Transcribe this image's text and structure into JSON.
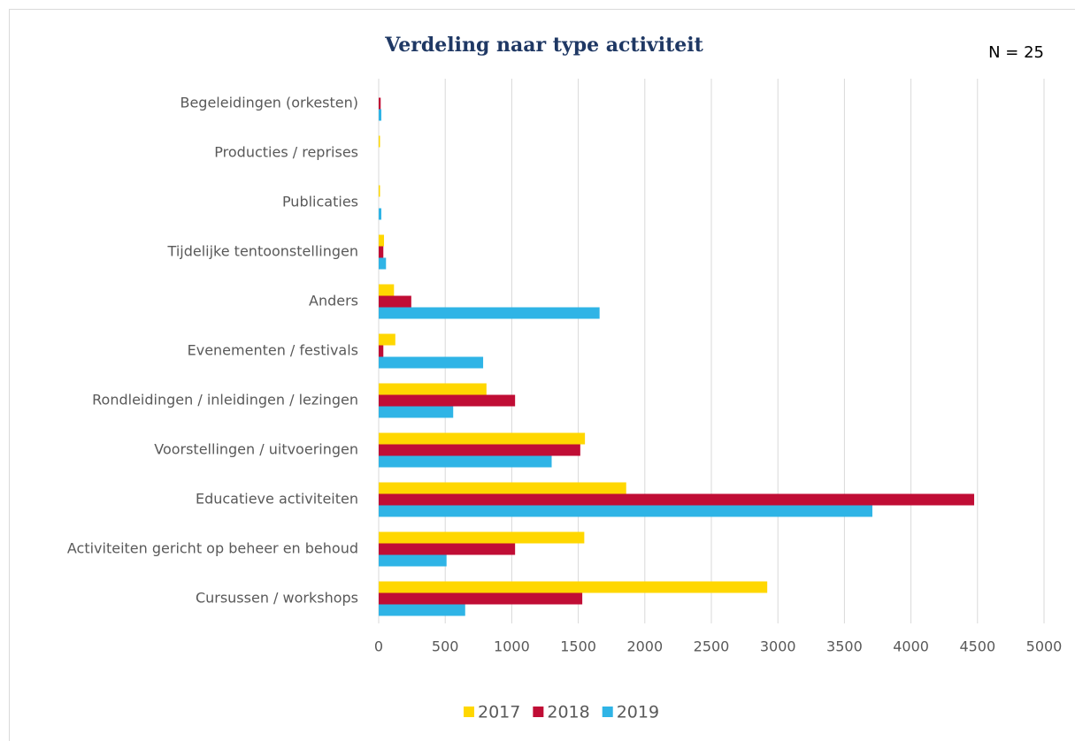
{
  "chart_data": {
    "type": "bar",
    "orientation": "horizontal",
    "title": "Verdeling naar type activiteit",
    "annotation": "N = 25",
    "categories": [
      "Begeleidingen (orkesten)",
      "Producties / reprises",
      "Publicaties",
      "Tijdelijke tentoonstellingen",
      "Anders",
      "Evenementen / festivals",
      "Rondleidingen / inleidingen / lezingen",
      "Voorstellingen / uitvoeringen",
      "Educatieve activiteiten",
      "Activiteiten gericht op beheer en behoud",
      "Cursussen / workshops"
    ],
    "series": [
      {
        "name": "2017",
        "color": "#ffd700",
        "values": [
          0,
          10,
          10,
          40,
          115,
          125,
          810,
          1550,
          1860,
          1545,
          2920
        ]
      },
      {
        "name": "2018",
        "color": "#c00d35",
        "values": [
          15,
          0,
          0,
          35,
          245,
          35,
          1025,
          1515,
          4475,
          1025,
          1530
        ]
      },
      {
        "name": "2019",
        "color": "#2fb4e6",
        "values": [
          20,
          0,
          20,
          55,
          1660,
          785,
          560,
          1300,
          3710,
          510,
          650
        ]
      }
    ],
    "xlim": [
      0,
      5000
    ],
    "xticks": [
      0,
      500,
      1000,
      1500,
      2000,
      2500,
      3000,
      3500,
      4000,
      4500,
      5000
    ],
    "grid": true,
    "legend": "bottom"
  }
}
